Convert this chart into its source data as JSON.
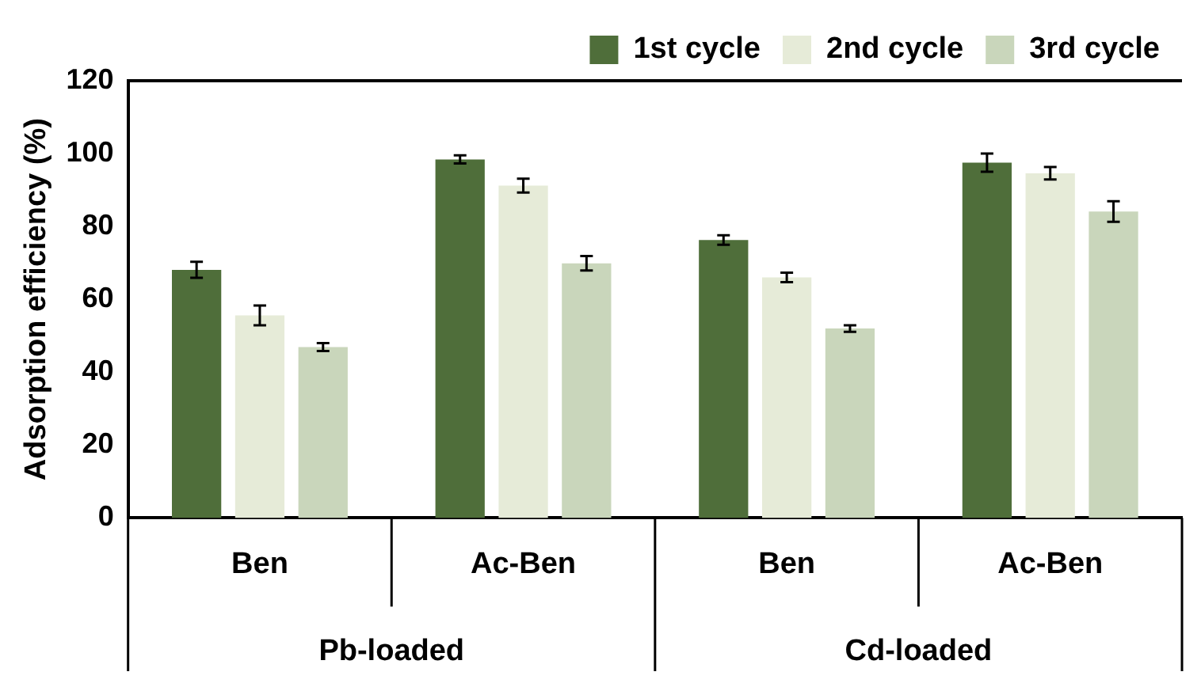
{
  "chart_data": {
    "type": "bar",
    "ylabel": "Adsorption efficiency (%)",
    "categories": [
      "Ben",
      "Ac-Ben",
      "Ben",
      "Ac-Ben"
    ],
    "annotations": [
      "Pb-loaded",
      "Cd-loaded"
    ],
    "series": [
      {
        "name": "1st cycle",
        "color": "#4f6e3a",
        "values": [
          68.1,
          98.4,
          76.3,
          97.5
        ],
        "errors": [
          2.2,
          1.1,
          1.3,
          2.5
        ]
      },
      {
        "name": "2nd cycle",
        "color": "#e6ebd8",
        "values": [
          55.6,
          91.2,
          66,
          94.6
        ],
        "errors": [
          2.7,
          1.9,
          1.3,
          1.7
        ]
      },
      {
        "name": "3rd cycle",
        "color": "#c9d6bb",
        "values": [
          46.9,
          69.9,
          52,
          84.1
        ],
        "errors": [
          1.1,
          2,
          0.9,
          2.8
        ]
      }
    ],
    "ylim": [
      0,
      120
    ],
    "yticks": [
      0,
      20,
      40,
      60,
      80,
      100,
      120
    ],
    "grid": false,
    "legend": "top right"
  }
}
